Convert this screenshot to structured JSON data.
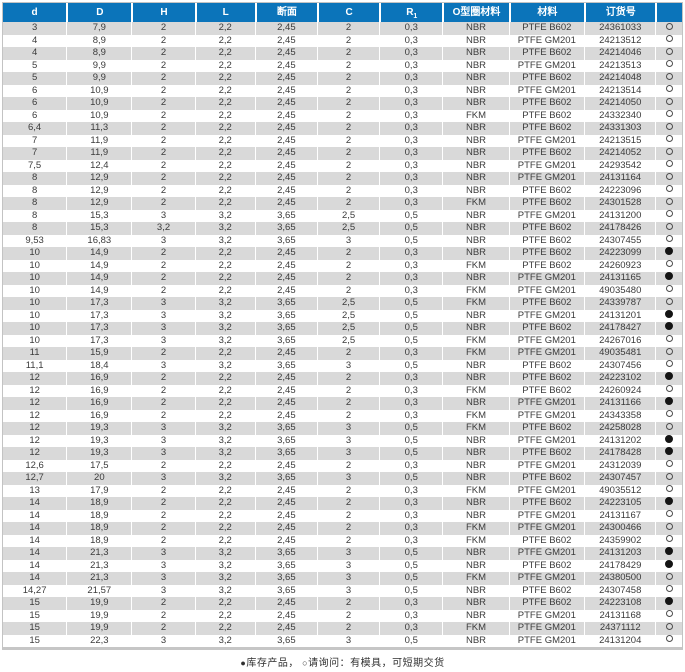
{
  "colors": {
    "header_bg": "#0b74ba",
    "header_text": "#ffffff",
    "row_alt": "#d9d9d9",
    "body_text": "#3b3b3b",
    "frame_border": "#c3c3c3"
  },
  "table": {
    "columns": [
      {
        "key": "d",
        "label": "d"
      },
      {
        "key": "D",
        "label": "D"
      },
      {
        "key": "H",
        "label": "H"
      },
      {
        "key": "L",
        "label": "L"
      },
      {
        "key": "section",
        "label": "断面"
      },
      {
        "key": "C",
        "label": "C"
      },
      {
        "key": "r1",
        "label": "R",
        "sub": "1"
      },
      {
        "key": "oring_material",
        "label": "O型圈材料"
      },
      {
        "key": "material",
        "label": "材料"
      },
      {
        "key": "order_no",
        "label": "订货号"
      },
      {
        "key": "availability",
        "label": ""
      }
    ],
    "rows": [
      [
        "3",
        "7,9",
        "2",
        "2,2",
        "2,45",
        "2",
        "0,3",
        "NBR",
        "PTFE B602",
        "24361033",
        "request"
      ],
      [
        "4",
        "8,9",
        "2",
        "2,2",
        "2,45",
        "2",
        "0,3",
        "NBR",
        "PTFE GM201",
        "24213512",
        "request"
      ],
      [
        "4",
        "8,9",
        "2",
        "2,2",
        "2,45",
        "2",
        "0,3",
        "NBR",
        "PTFE B602",
        "24214046",
        "request"
      ],
      [
        "5",
        "9,9",
        "2",
        "2,2",
        "2,45",
        "2",
        "0,3",
        "NBR",
        "PTFE GM201",
        "24213513",
        "request"
      ],
      [
        "5",
        "9,9",
        "2",
        "2,2",
        "2,45",
        "2",
        "0,3",
        "NBR",
        "PTFE B602",
        "24214048",
        "request"
      ],
      [
        "6",
        "10,9",
        "2",
        "2,2",
        "2,45",
        "2",
        "0,3",
        "NBR",
        "PTFE GM201",
        "24213514",
        "request"
      ],
      [
        "6",
        "10,9",
        "2",
        "2,2",
        "2,45",
        "2",
        "0,3",
        "NBR",
        "PTFE B602",
        "24214050",
        "request"
      ],
      [
        "6",
        "10,9",
        "2",
        "2,2",
        "2,45",
        "2",
        "0,3",
        "FKM",
        "PTFE B602",
        "24332340",
        "request"
      ],
      [
        "6,4",
        "11,3",
        "2",
        "2,2",
        "2,45",
        "2",
        "0,3",
        "NBR",
        "PTFE B602",
        "24331303",
        "request"
      ],
      [
        "7",
        "11,9",
        "2",
        "2,2",
        "2,45",
        "2",
        "0,3",
        "NBR",
        "PTFE GM201",
        "24213515",
        "request"
      ],
      [
        "7",
        "11,9",
        "2",
        "2,2",
        "2,45",
        "2",
        "0,3",
        "NBR",
        "PTFE B602",
        "24214052",
        "request"
      ],
      [
        "7,5",
        "12,4",
        "2",
        "2,2",
        "2,45",
        "2",
        "0,3",
        "NBR",
        "PTFE GM201",
        "24293542",
        "request"
      ],
      [
        "8",
        "12,9",
        "2",
        "2,2",
        "2,45",
        "2",
        "0,3",
        "NBR",
        "PTFE GM201",
        "24131164",
        "request"
      ],
      [
        "8",
        "12,9",
        "2",
        "2,2",
        "2,45",
        "2",
        "0,3",
        "NBR",
        "PTFE B602",
        "24223096",
        "request"
      ],
      [
        "8",
        "12,9",
        "2",
        "2,2",
        "2,45",
        "2",
        "0,3",
        "FKM",
        "PTFE B602",
        "24301528",
        "request"
      ],
      [
        "8",
        "15,3",
        "3",
        "3,2",
        "3,65",
        "2,5",
        "0,5",
        "NBR",
        "PTFE GM201",
        "24131200",
        "request"
      ],
      [
        "8",
        "15,3",
        "3,2",
        "3,2",
        "3,65",
        "2,5",
        "0,5",
        "NBR",
        "PTFE B602",
        "24178426",
        "request"
      ],
      [
        "9,53",
        "16,83",
        "3",
        "3,2",
        "3,65",
        "3",
        "0,5",
        "NBR",
        "PTFE B602",
        "24307455",
        "request"
      ],
      [
        "10",
        "14,9",
        "2",
        "2,2",
        "2,45",
        "2",
        "0,3",
        "NBR",
        "PTFE B602",
        "24223099",
        "stock"
      ],
      [
        "10",
        "14,9",
        "2",
        "2,2",
        "2,45",
        "2",
        "0,3",
        "FKM",
        "PTFE B602",
        "24260923",
        "request"
      ],
      [
        "10",
        "14,9",
        "2",
        "2,2",
        "2,45",
        "2",
        "0,3",
        "NBR",
        "PTFE GM201",
        "24131165",
        "stock"
      ],
      [
        "10",
        "14,9",
        "2",
        "2,2",
        "2,45",
        "2",
        "0,3",
        "FKM",
        "PTFE GM201",
        "49035480",
        "request"
      ],
      [
        "10",
        "17,3",
        "3",
        "3,2",
        "3,65",
        "2,5",
        "0,5",
        "FKM",
        "PTFE B602",
        "24339787",
        "request"
      ],
      [
        "10",
        "17,3",
        "3",
        "3,2",
        "3,65",
        "2,5",
        "0,5",
        "NBR",
        "PTFE GM201",
        "24131201",
        "stock"
      ],
      [
        "10",
        "17,3",
        "3",
        "3,2",
        "3,65",
        "2,5",
        "0,5",
        "NBR",
        "PTFE B602",
        "24178427",
        "stock"
      ],
      [
        "10",
        "17,3",
        "3",
        "3,2",
        "3,65",
        "2,5",
        "0,5",
        "FKM",
        "PTFE GM201",
        "24267016",
        "request"
      ],
      [
        "11",
        "15,9",
        "2",
        "2,2",
        "2,45",
        "2",
        "0,3",
        "FKM",
        "PTFE GM201",
        "49035481",
        "request"
      ],
      [
        "11,1",
        "18,4",
        "3",
        "3,2",
        "3,65",
        "3",
        "0,5",
        "NBR",
        "PTFE B602",
        "24307456",
        "request"
      ],
      [
        "12",
        "16,9",
        "2",
        "2,2",
        "2,45",
        "2",
        "0,3",
        "NBR",
        "PTFE B602",
        "24223102",
        "stock"
      ],
      [
        "12",
        "16,9",
        "2",
        "2,2",
        "2,45",
        "2",
        "0,3",
        "FKM",
        "PTFE B602",
        "24260924",
        "request"
      ],
      [
        "12",
        "16,9",
        "2",
        "2,2",
        "2,45",
        "2",
        "0,3",
        "NBR",
        "PTFE GM201",
        "24131166",
        "stock"
      ],
      [
        "12",
        "16,9",
        "2",
        "2,2",
        "2,45",
        "2",
        "0,3",
        "FKM",
        "PTFE GM201",
        "24343358",
        "request"
      ],
      [
        "12",
        "19,3",
        "3",
        "3,2",
        "3,65",
        "3",
        "0,5",
        "FKM",
        "PTFE B602",
        "24258028",
        "request"
      ],
      [
        "12",
        "19,3",
        "3",
        "3,2",
        "3,65",
        "3",
        "0,5",
        "NBR",
        "PTFE GM201",
        "24131202",
        "stock"
      ],
      [
        "12",
        "19,3",
        "3",
        "3,2",
        "3,65",
        "3",
        "0,5",
        "NBR",
        "PTFE B602",
        "24178428",
        "stock"
      ],
      [
        "12,6",
        "17,5",
        "2",
        "2,2",
        "2,45",
        "2",
        "0,3",
        "NBR",
        "PTFE GM201",
        "24312039",
        "request"
      ],
      [
        "12,7",
        "20",
        "3",
        "3,2",
        "3,65",
        "3",
        "0,5",
        "NBR",
        "PTFE B602",
        "24307457",
        "request"
      ],
      [
        "13",
        "17,9",
        "2",
        "2,2",
        "2,45",
        "2",
        "0,3",
        "FKM",
        "PTFE GM201",
        "49035512",
        "request"
      ],
      [
        "14",
        "18,9",
        "2",
        "2,2",
        "2,45",
        "2",
        "0,3",
        "NBR",
        "PTFE B602",
        "24223105",
        "stock"
      ],
      [
        "14",
        "18,9",
        "2",
        "2,2",
        "2,45",
        "2",
        "0,3",
        "NBR",
        "PTFE GM201",
        "24131167",
        "request"
      ],
      [
        "14",
        "18,9",
        "2",
        "2,2",
        "2,45",
        "2",
        "0,3",
        "FKM",
        "PTFE GM201",
        "24300466",
        "request"
      ],
      [
        "14",
        "18,9",
        "2",
        "2,2",
        "2,45",
        "2",
        "0,3",
        "FKM",
        "PTFE B602",
        "24359902",
        "request"
      ],
      [
        "14",
        "21,3",
        "3",
        "3,2",
        "3,65",
        "3",
        "0,5",
        "NBR",
        "PTFE GM201",
        "24131203",
        "stock"
      ],
      [
        "14",
        "21,3",
        "3",
        "3,2",
        "3,65",
        "3",
        "0,5",
        "NBR",
        "PTFE B602",
        "24178429",
        "stock"
      ],
      [
        "14",
        "21,3",
        "3",
        "3,2",
        "3,65",
        "3",
        "0,5",
        "FKM",
        "PTFE GM201",
        "24380500",
        "request"
      ],
      [
        "14,27",
        "21,57",
        "3",
        "3,2",
        "3,65",
        "3",
        "0,5",
        "NBR",
        "PTFE B602",
        "24307458",
        "request"
      ],
      [
        "15",
        "19,9",
        "2",
        "2,2",
        "2,45",
        "2",
        "0,3",
        "NBR",
        "PTFE B602",
        "24223108",
        "stock"
      ],
      [
        "15",
        "19,9",
        "2",
        "2,2",
        "2,45",
        "2",
        "0,3",
        "NBR",
        "PTFE GM201",
        "24131168",
        "request"
      ],
      [
        "15",
        "19,9",
        "2",
        "2,2",
        "2,45",
        "2",
        "0,3",
        "FKM",
        "PTFE GM201",
        "24371112",
        "request"
      ],
      [
        "15",
        "22,3",
        "3",
        "3,2",
        "3,65",
        "3",
        "0,5",
        "NBR",
        "PTFE GM201",
        "24131204",
        "request"
      ]
    ]
  },
  "legend": {
    "stock_symbol": "●",
    "stock_text": "库存产品，",
    "request_symbol": "○",
    "request_text": "请询问：有模具，可短期交货"
  }
}
